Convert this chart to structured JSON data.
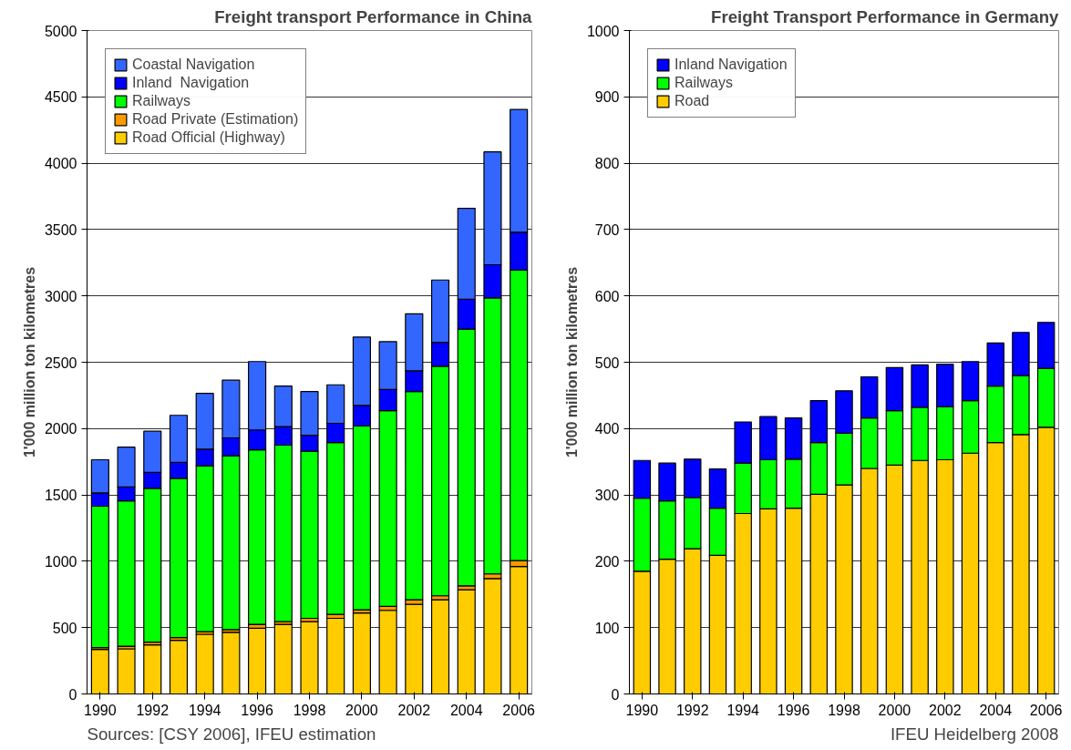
{
  "chart_data": [
    {
      "type": "bar",
      "stacked": true,
      "title": "Freight transport Performance in China",
      "ylabel": "1'000 million ton kilometres",
      "x": [
        1990,
        1991,
        1992,
        1993,
        1994,
        1995,
        1996,
        1997,
        1998,
        1999,
        2000,
        2001,
        2002,
        2003,
        2004,
        2005,
        2006
      ],
      "xlim": [
        1989.5,
        2006.5
      ],
      "xticks": [
        1990,
        1992,
        1994,
        1996,
        1998,
        2000,
        2002,
        2004,
        2006
      ],
      "ylim": [
        0,
        5000
      ],
      "yticks": [
        0,
        500,
        1000,
        1500,
        2000,
        2500,
        3000,
        3500,
        4000,
        4500,
        5000
      ],
      "grid": "y",
      "legend": "top left",
      "annotations": [
        "Sources: [CSY 2006], IFEU estimation"
      ],
      "series": [
        {
          "name": "Road Official (Highway)",
          "color": "#ffcc00",
          "values": [
            335,
            340,
            370,
            405,
            450,
            465,
            495,
            525,
            545,
            570,
            610,
            630,
            675,
            710,
            785,
            870,
            960
          ]
        },
        {
          "name": "Road Private (Estimation)",
          "color": "#ff9900",
          "values": [
            15,
            20,
            20,
            20,
            20,
            20,
            30,
            20,
            25,
            30,
            25,
            30,
            35,
            30,
            30,
            35,
            45
          ]
        },
        {
          "name": "Railways",
          "color": "#00ff00",
          "values": [
            1065,
            1095,
            1160,
            1200,
            1250,
            1310,
            1315,
            1330,
            1260,
            1295,
            1385,
            1475,
            1570,
            1730,
            1935,
            2080,
            2190
          ]
        },
        {
          "name": "Inland  Navigation",
          "color": "#0000ff",
          "values": [
            100,
            105,
            120,
            120,
            125,
            135,
            150,
            140,
            120,
            145,
            155,
            160,
            155,
            180,
            225,
            250,
            285
          ]
        },
        {
          "name": "Coastal Navigation",
          "color": "#3366ff",
          "values": [
            250,
            300,
            310,
            355,
            420,
            435,
            515,
            305,
            330,
            290,
            515,
            360,
            430,
            470,
            685,
            850,
            925
          ]
        }
      ]
    },
    {
      "type": "bar",
      "stacked": true,
      "title": "Freight Transport Performance in Germany",
      "ylabel": "1'000 million ton kilometres",
      "x": [
        1990,
        1991,
        1992,
        1993,
        1994,
        1995,
        1996,
        1997,
        1998,
        1999,
        2000,
        2001,
        2002,
        2003,
        2004,
        2005,
        2006
      ],
      "xlim": [
        1989.5,
        2006.5
      ],
      "xticks": [
        1990,
        1992,
        1994,
        1996,
        1998,
        2000,
        2002,
        2004,
        2006
      ],
      "ylim": [
        0,
        1000
      ],
      "yticks": [
        0,
        100,
        200,
        300,
        400,
        500,
        600,
        700,
        800,
        900,
        1000
      ],
      "grid": "y",
      "legend": "top left",
      "annotations": [
        "IFEU Heidelberg 2008"
      ],
      "series": [
        {
          "name": "Road",
          "color": "#ffcc00",
          "values": [
            185,
            203,
            219,
            209,
            272,
            279,
            280,
            301,
            315,
            340,
            345,
            352,
            353,
            363,
            379,
            391,
            402
          ]
        },
        {
          "name": "Railways",
          "color": "#00ff00",
          "values": [
            110,
            88,
            77,
            71,
            76,
            74,
            74,
            78,
            78,
            76,
            82,
            80,
            80,
            79,
            85,
            89,
            89
          ]
        },
        {
          "name": "Inland Navigation",
          "color": "#0000ff",
          "values": [
            57,
            57,
            58,
            59,
            62,
            65,
            62,
            63,
            64,
            62,
            65,
            64,
            64,
            59,
            65,
            65,
            69
          ]
        }
      ]
    }
  ]
}
